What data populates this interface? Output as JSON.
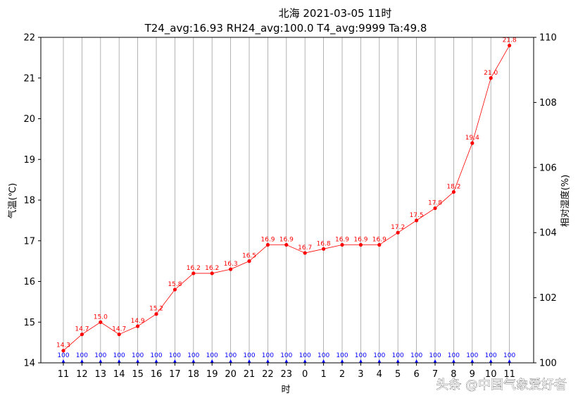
{
  "chart_data": {
    "type": "line",
    "title": "北海 2021-03-05 11时",
    "subtitle": "T24_avg:16.93    RH24_avg:100.0    T4_avg:9999    Ta:49.8",
    "xlabel": "时",
    "ylabel": "气温(℃)",
    "y2label": "相对湿度(%)",
    "categories": [
      "11",
      "12",
      "13",
      "14",
      "15",
      "16",
      "17",
      "18",
      "19",
      "20",
      "21",
      "22",
      "23",
      "0",
      "1",
      "2",
      "3",
      "4",
      "5",
      "6",
      "7",
      "8",
      "9",
      "10",
      "11"
    ],
    "ylim": [
      14,
      22
    ],
    "yticks": [
      "14",
      "15",
      "16",
      "17",
      "18",
      "19",
      "20",
      "21",
      "22"
    ],
    "y2lim": [
      100,
      110
    ],
    "y2ticks": [
      "100",
      "102",
      "104",
      "106",
      "108",
      "110"
    ],
    "grid": "vertical",
    "series": [
      {
        "name": "",
        "axis": "left",
        "color": "#ff0000",
        "values": [
          14.3,
          14.7,
          15.0,
          14.7,
          14.9,
          15.2,
          15.8,
          16.2,
          16.2,
          16.3,
          16.5,
          16.9,
          16.9,
          16.7,
          16.8,
          16.9,
          16.9,
          16.9,
          17.2,
          17.5,
          17.8,
          18.2,
          19.4,
          21.0,
          21.8
        ],
        "labels": [
          "14.3",
          "14.7",
          "15.0",
          "14.7",
          "14.9",
          "15.2",
          "15.8",
          "16.2",
          "16.2",
          "16.3",
          "16.5",
          "16.9",
          "16.9",
          "16.7",
          "16.8",
          "16.9",
          "16.9",
          "16.9",
          "17.2",
          "17.5",
          "17.8",
          "18.2",
          "19.4",
          "21.0",
          "21.8"
        ]
      },
      {
        "name": "",
        "axis": "right",
        "color": "#0000ff",
        "values": [
          100,
          100,
          100,
          100,
          100,
          100,
          100,
          100,
          100,
          100,
          100,
          100,
          100,
          100,
          100,
          100,
          100,
          100,
          100,
          100,
          100,
          100,
          100,
          100,
          100
        ],
        "labels": [
          "100",
          "100",
          "100",
          "100",
          "100",
          "100",
          "100",
          "100",
          "100",
          "100",
          "100",
          "100",
          "100",
          "100",
          "100",
          "100",
          "100",
          "100",
          "100",
          "100",
          "100",
          "100",
          "100",
          "100",
          "100"
        ]
      }
    ]
  },
  "watermark": "头条 @中国气象爱好者",
  "colors": {
    "temperature": "#ff0000",
    "humidity": "#0000ff",
    "grid": "#a0a0a0",
    "axis": "#000000"
  }
}
